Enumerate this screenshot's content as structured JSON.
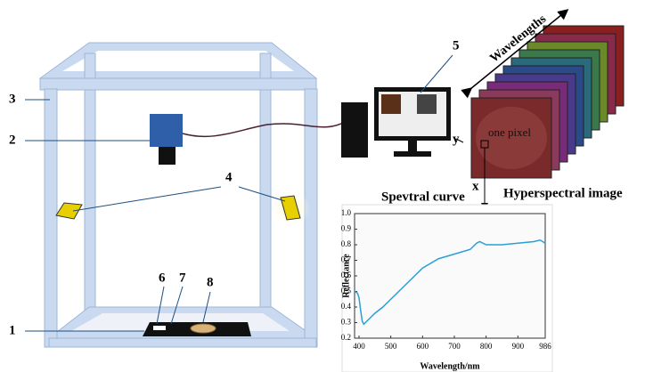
{
  "callouts": [
    "1",
    "2",
    "3",
    "4",
    "5",
    "6",
    "7",
    "8"
  ],
  "hyperspectral": {
    "axis_label": "Wavelengths",
    "pixel_label": "one pixel",
    "x_label": "x",
    "y_label": "y",
    "title": "Hyperspectral image"
  },
  "chart_data": {
    "type": "line",
    "title": "Spevtral curve",
    "x_label": "Wavelength/nm",
    "y_label": "Reflectance",
    "color": "#2a9fd8",
    "x": [
      386,
      395,
      400,
      405,
      410,
      415,
      420,
      430,
      450,
      475,
      500,
      550,
      600,
      650,
      700,
      750,
      770,
      780,
      800,
      850,
      900,
      950,
      970,
      986
    ],
    "values": [
      0.5,
      0.49,
      0.46,
      0.38,
      0.31,
      0.29,
      0.3,
      0.32,
      0.36,
      0.4,
      0.45,
      0.55,
      0.65,
      0.71,
      0.74,
      0.77,
      0.81,
      0.82,
      0.8,
      0.8,
      0.81,
      0.82,
      0.83,
      0.81
    ],
    "xlim": [
      386,
      986
    ],
    "ylim": [
      0.2,
      1.0
    ],
    "xticks": [
      400,
      500,
      600,
      700,
      800,
      900,
      986
    ],
    "yticks": [
      0.2,
      0.3,
      0.4,
      0.5,
      0.6,
      0.7,
      0.8,
      0.9,
      {
        "value": 1.0,
        "label": "1.0"
      }
    ]
  }
}
